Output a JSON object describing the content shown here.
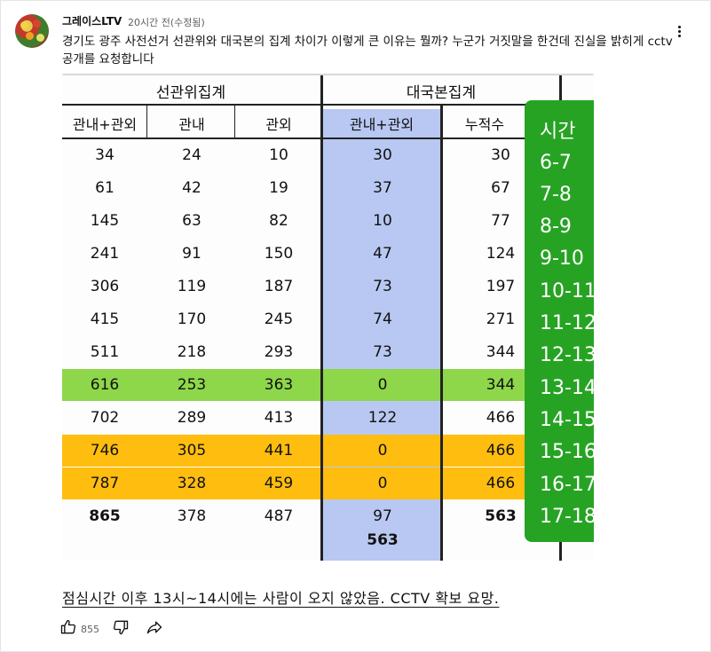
{
  "comment": {
    "author": "그레이스LTV",
    "time": "20시간 전(수정됨)",
    "text": "경기도 광주 사전선거 선관위와 대국본의 집계 차이가 이렇게 큰 이유는 뭘까? 누군가 거짓말을 한건데 진실을 밝히게 cctv공개를 요청합니다",
    "like_count": "855",
    "icons": {
      "menu": "more-vert-icon",
      "like": "thumb-up-icon",
      "dislike": "thumb-down-icon",
      "share": "share-icon"
    }
  },
  "image": {
    "group_headers": [
      "선관위집계",
      "대국본집계"
    ],
    "column_headers": [
      "관내+관외",
      "관내",
      "관외",
      "관내+관외",
      "누적수"
    ],
    "rows": [
      [
        "34",
        "24",
        "10",
        "30",
        "30"
      ],
      [
        "61",
        "42",
        "19",
        "37",
        "67"
      ],
      [
        "145",
        "63",
        "82",
        "10",
        "77"
      ],
      [
        "241",
        "91",
        "150",
        "47",
        "124"
      ],
      [
        "306",
        "119",
        "187",
        "73",
        "197"
      ],
      [
        "415",
        "170",
        "245",
        "74",
        "271"
      ],
      [
        "511",
        "218",
        "293",
        "73",
        "344"
      ],
      [
        "616",
        "253",
        "363",
        "0",
        "344"
      ],
      [
        "702",
        "289",
        "413",
        "122",
        "466"
      ],
      [
        "746",
        "305",
        "441",
        "0",
        "466"
      ],
      [
        "787",
        "328",
        "459",
        "0",
        "466"
      ],
      [
        "865",
        "378",
        "487",
        "97",
        "563"
      ]
    ],
    "total": "563",
    "time_header": "시간",
    "time_slots": [
      "6-7",
      "7-8",
      "8-9",
      "9-10",
      "10-11",
      "11-12",
      "12-13",
      "13-14",
      "14-15",
      "15-16",
      "16-17",
      "17-18"
    ],
    "caption": "점심시간 이후 13시~14시에는 사람이 오지 않았음. CCTV 확보 요망.",
    "colors": {
      "highlight_green": "#8ed64a",
      "highlight_orange": "#ffbd0f",
      "blue_column": "#b8c8f2",
      "time_panel": "#27a324"
    }
  }
}
